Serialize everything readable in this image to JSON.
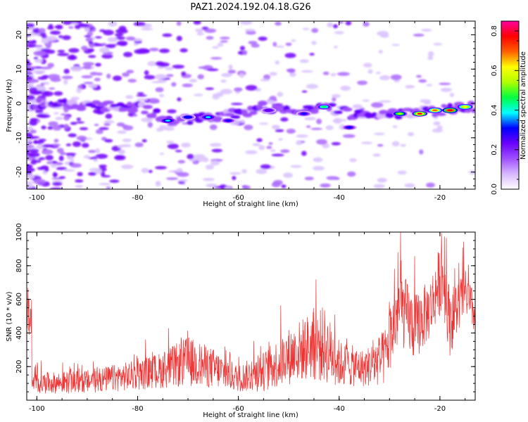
{
  "title": "PAZ1.2024.192.04.18.G26",
  "chart_data": [
    {
      "type": "heatmap",
      "xlabel": "Height of straight line (km)",
      "ylabel": "Frequency (Hz)",
      "xlim": [
        -102,
        -13
      ],
      "ylim": [
        -25,
        24
      ],
      "x_ticks": [
        -100,
        -80,
        -60,
        -40,
        -20
      ],
      "y_ticks": [
        -20,
        -10,
        0,
        10,
        20
      ],
      "colorbar": {
        "label": "Normalized spectral amplitude",
        "range": [
          0,
          0.85
        ],
        "ticks": [
          0.0,
          0.2,
          0.4,
          0.6,
          0.8
        ],
        "colors": [
          "#ffffff",
          "#d8b8ff",
          "#a050ff",
          "#6a00ff",
          "#0000ff",
          "#00ffff",
          "#00ff40",
          "#b0ff00",
          "#ffff00",
          "#ff6000",
          "#ff0000",
          "#ff00a0"
        ]
      },
      "ridge": [
        {
          "x": -101,
          "y": 0
        },
        {
          "x": -85,
          "y": -1
        },
        {
          "x": -80,
          "y": -1
        },
        {
          "x": -75,
          "y": -4
        },
        {
          "x": -70,
          "y": -5
        },
        {
          "x": -65,
          "y": -4
        },
        {
          "x": -60,
          "y": -3
        },
        {
          "x": -55,
          "y": -1
        },
        {
          "x": -48,
          "y": -2
        },
        {
          "x": -43,
          "y": -1
        },
        {
          "x": -38,
          "y": -3
        },
        {
          "x": -30,
          "y": -3
        },
        {
          "x": -25,
          "y": -3
        },
        {
          "x": -20,
          "y": -2
        },
        {
          "x": -15,
          "y": -1
        },
        {
          "x": -13,
          "y": -1
        }
      ],
      "hotspots": [
        {
          "x": -74,
          "y": -5,
          "v": 0.35
        },
        {
          "x": -70,
          "y": -4,
          "v": 0.32
        },
        {
          "x": -66,
          "y": -4,
          "v": 0.4
        },
        {
          "x": -62,
          "y": -5,
          "v": 0.28
        },
        {
          "x": -54,
          "y": -2,
          "v": 0.25
        },
        {
          "x": -47,
          "y": -3,
          "v": 0.3
        },
        {
          "x": -43,
          "y": -1,
          "v": 0.45
        },
        {
          "x": -38,
          "y": -7,
          "v": 0.3
        },
        {
          "x": -28,
          "y": -3,
          "v": 0.55
        },
        {
          "x": -24,
          "y": -3,
          "v": 0.75
        },
        {
          "x": -21,
          "y": -2,
          "v": 0.7
        },
        {
          "x": -18,
          "y": -2,
          "v": 0.8
        },
        {
          "x": -15,
          "y": -1,
          "v": 0.65
        }
      ]
    },
    {
      "type": "line",
      "xlabel": "Height of straight line (km)",
      "ylabel": "SNR (10 * v/v)",
      "xlim": [
        -102,
        -13
      ],
      "ylim": [
        0,
        1000
      ],
      "x_ticks": [
        -100,
        -80,
        -60,
        -40,
        -20
      ],
      "y_ticks": [
        200,
        400,
        600,
        800,
        1000
      ],
      "color": "#ee3333",
      "envelope": [
        {
          "x": -101,
          "y": 100,
          "amp": 60
        },
        {
          "x": -90,
          "y": 110,
          "amp": 70
        },
        {
          "x": -80,
          "y": 150,
          "amp": 90
        },
        {
          "x": -75,
          "y": 180,
          "amp": 110
        },
        {
          "x": -70,
          "y": 230,
          "amp": 150
        },
        {
          "x": -65,
          "y": 190,
          "amp": 120
        },
        {
          "x": -60,
          "y": 130,
          "amp": 80
        },
        {
          "x": -55,
          "y": 170,
          "amp": 120
        },
        {
          "x": -50,
          "y": 260,
          "amp": 170
        },
        {
          "x": -46,
          "y": 320,
          "amp": 200
        },
        {
          "x": -43,
          "y": 330,
          "amp": 230
        },
        {
          "x": -40,
          "y": 220,
          "amp": 140
        },
        {
          "x": -35,
          "y": 190,
          "amp": 110
        },
        {
          "x": -31,
          "y": 250,
          "amp": 170
        },
        {
          "x": -28,
          "y": 560,
          "amp": 230
        },
        {
          "x": -25,
          "y": 430,
          "amp": 200
        },
        {
          "x": -22,
          "y": 540,
          "amp": 180
        },
        {
          "x": -19.5,
          "y": 760,
          "amp": 220
        },
        {
          "x": -18,
          "y": 460,
          "amp": 200
        },
        {
          "x": -15,
          "y": 640,
          "amp": 140
        },
        {
          "x": -13,
          "y": 500,
          "amp": 120
        }
      ]
    }
  ]
}
